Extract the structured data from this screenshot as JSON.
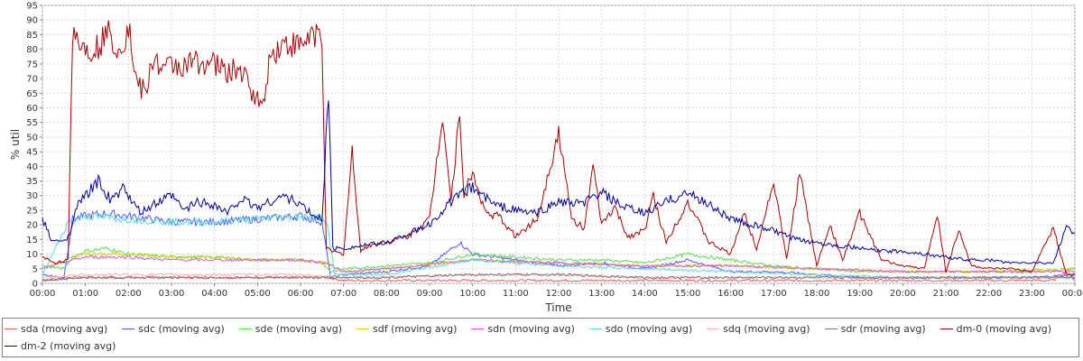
{
  "chart_data": {
    "type": "line",
    "title": "",
    "xlabel": "Time",
    "ylabel": "% util",
    "ylim": [
      0,
      95
    ],
    "xlim": [
      0,
      24
    ],
    "y_ticks": [
      0,
      5,
      10,
      15,
      20,
      25,
      30,
      35,
      40,
      45,
      50,
      55,
      60,
      65,
      70,
      75,
      80,
      85,
      90,
      95
    ],
    "x_tick_labels": [
      "00:00",
      "01:00",
      "02:00",
      "03:00",
      "04:00",
      "05:00",
      "06:00",
      "07:00",
      "08:00",
      "09:00",
      "10:00",
      "11:00",
      "12:00",
      "13:00",
      "14:00",
      "15:00",
      "16:00",
      "17:00",
      "18:00",
      "19:00",
      "20:00",
      "21:00",
      "22:00",
      "23:00",
      "00:00"
    ],
    "grid": true,
    "legend_position": "bottom",
    "series": [
      {
        "name": "sda (moving avg)",
        "color": "#ff5555",
        "x": [
          0,
          0.6,
          1,
          2,
          3,
          4,
          5,
          6,
          6.6,
          7,
          8,
          10,
          12,
          14,
          16,
          18,
          20,
          22,
          23.5,
          23.8,
          24
        ],
        "y": [
          1,
          2,
          2,
          2,
          2,
          2,
          2,
          2,
          2,
          1,
          1,
          1,
          1,
          1,
          1,
          1,
          1,
          1,
          1,
          4,
          1
        ]
      },
      {
        "name": "sdc (moving avg)",
        "color": "#5555ff",
        "x": [
          0,
          0.5,
          0.7,
          1,
          1.5,
          2,
          2.5,
          3,
          4,
          5,
          6,
          6.5,
          6.7,
          7,
          8,
          9,
          9.7,
          10,
          11,
          12,
          13,
          14,
          15,
          16,
          17,
          18,
          19,
          20,
          21,
          22,
          23,
          24
        ],
        "y": [
          3,
          2,
          22,
          23,
          24,
          23,
          22,
          21,
          21,
          22,
          23,
          21,
          2,
          3,
          4,
          6,
          14,
          10,
          8,
          6,
          7,
          5,
          8,
          4,
          4,
          3,
          2,
          2,
          2,
          2,
          2,
          3
        ]
      },
      {
        "name": "sde (moving avg)",
        "color": "#55dd55",
        "x": [
          0,
          0.5,
          0.7,
          1,
          1.5,
          2,
          3,
          4,
          5,
          6,
          6.5,
          6.7,
          7,
          8,
          9,
          10,
          11,
          12,
          13,
          14,
          15,
          16,
          17,
          18,
          19,
          20,
          21,
          22,
          23,
          24
        ],
        "y": [
          6,
          5,
          9,
          11,
          12,
          10,
          9,
          9,
          8,
          8,
          7,
          4,
          5,
          6,
          7,
          10,
          9,
          8,
          8,
          7,
          10,
          8,
          6,
          5,
          4,
          4,
          4,
          4,
          4,
          5
        ]
      },
      {
        "name": "sdf (moving avg)",
        "color": "#d4d400",
        "x": [
          0,
          0.7,
          1,
          2,
          3,
          4,
          5,
          6,
          6.6,
          7,
          8,
          10,
          12,
          14,
          16,
          18,
          20,
          22,
          24
        ],
        "y": [
          5,
          9,
          10,
          10,
          9,
          9,
          8,
          8,
          7,
          4,
          5,
          8,
          7,
          6,
          6,
          5,
          4,
          4,
          5
        ]
      },
      {
        "name": "sdn (moving avg)",
        "color": "#dd55dd",
        "x": [
          0,
          0.7,
          1,
          2,
          3,
          4,
          5,
          6,
          6.6,
          7,
          8,
          10,
          12,
          14,
          16,
          18,
          20,
          22,
          24
        ],
        "y": [
          5,
          8,
          9,
          9,
          8,
          8,
          8,
          8,
          7,
          4,
          5,
          8,
          7,
          6,
          6,
          5,
          4,
          4,
          4
        ]
      },
      {
        "name": "sdo (moving avg)",
        "color": "#55dddd",
        "x": [
          0,
          0.6,
          1,
          2,
          3,
          4,
          5,
          6,
          6.6,
          6.8,
          8,
          10,
          12,
          14,
          16,
          18,
          20,
          22,
          24
        ],
        "y": [
          3,
          21,
          23,
          22,
          21,
          21,
          22,
          23,
          22,
          3,
          3,
          8,
          6,
          5,
          4,
          3,
          2,
          2,
          2
        ]
      },
      {
        "name": "sdq (moving avg)",
        "color": "#ffaaaa",
        "x": [
          0,
          1,
          2,
          3,
          4,
          5,
          6,
          7,
          8,
          10,
          12,
          14,
          16,
          18,
          20,
          22,
          24
        ],
        "y": [
          2,
          3,
          3,
          3,
          3,
          3,
          3,
          2,
          2,
          3,
          3,
          2,
          2,
          2,
          2,
          2,
          2
        ]
      },
      {
        "name": "sdr (moving avg)",
        "color": "#777777",
        "x": [
          0,
          1,
          2,
          3,
          4,
          5,
          6,
          7,
          8,
          10,
          12,
          14,
          16,
          18,
          20,
          22,
          24
        ],
        "y": [
          1,
          2,
          2,
          2,
          2,
          2,
          2,
          2,
          2,
          3,
          3,
          2,
          2,
          2,
          2,
          2,
          2
        ]
      },
      {
        "name": "dm-0 (moving avg)",
        "color": "#aa0000",
        "x": [
          0,
          0.3,
          0.6,
          0.7,
          1,
          1.3,
          1.5,
          1.8,
          2,
          2.2,
          2.4,
          2.6,
          2.8,
          3,
          3.3,
          3.6,
          4,
          4.3,
          4.6,
          4.9,
          5.1,
          5.3,
          5.6,
          6,
          6.3,
          6.5,
          6.6,
          6.7,
          7,
          7.2,
          7.4,
          7.6,
          8,
          8.5,
          9,
          9.3,
          9.5,
          9.7,
          9.8,
          10,
          10.3,
          10.6,
          11,
          11.5,
          12,
          12.3,
          12.6,
          12.8,
          13,
          13.3,
          13.6,
          14,
          14.2,
          14.5,
          15,
          15.5,
          16,
          16.3,
          16.6,
          17,
          17.3,
          17.6,
          18,
          18.3,
          18.6,
          19,
          19.5,
          20,
          20.5,
          20.8,
          21,
          21.3,
          21.6,
          22,
          22.5,
          23,
          23.5,
          23.8,
          24
        ],
        "y": [
          9,
          7,
          8,
          87,
          80,
          81,
          86,
          80,
          88,
          68,
          65,
          78,
          72,
          75,
          74,
          76,
          75,
          72,
          73,
          65,
          60,
          78,
          82,
          81,
          86,
          84,
          12,
          11,
          10,
          45,
          11,
          13,
          14,
          16,
          22,
          58,
          28,
          60,
          30,
          38,
          24,
          23,
          16,
          22,
          52,
          22,
          19,
          40,
          20,
          26,
          16,
          18,
          30,
          14,
          28,
          14,
          10,
          24,
          12,
          35,
          8,
          38,
          6,
          20,
          8,
          24,
          8,
          6,
          5,
          24,
          4,
          18,
          6,
          5,
          5,
          4,
          19,
          3,
          3
        ]
      },
      {
        "name": "dm-2 (moving avg)",
        "color": "#000099",
        "x": [
          0,
          0.2,
          0.4,
          0.6,
          0.8,
          1,
          1.3,
          1.6,
          1.9,
          2.1,
          2.3,
          2.6,
          3,
          3.3,
          3.6,
          4,
          4.3,
          4.6,
          5,
          5.3,
          5.6,
          6,
          6.3,
          6.5,
          6.65,
          6.75,
          7,
          8,
          9,
          9.5,
          10,
          10.5,
          11,
          11.5,
          12,
          12.5,
          13,
          13.5,
          14,
          14.5,
          15,
          15.5,
          16,
          16.5,
          17,
          17.5,
          18,
          18.5,
          19,
          19.5,
          20,
          20.5,
          21,
          21.5,
          22,
          22.5,
          23,
          23.5,
          23.8,
          24
        ],
        "y": [
          22,
          15,
          14,
          16,
          26,
          30,
          35,
          28,
          33,
          27,
          24,
          27,
          30,
          25,
          28,
          27,
          24,
          29,
          26,
          28,
          30,
          27,
          23,
          22,
          66,
          12,
          12,
          14,
          20,
          28,
          33,
          27,
          25,
          24,
          28,
          27,
          31,
          26,
          24,
          28,
          31,
          27,
          22,
          20,
          18,
          15,
          14,
          13,
          12,
          11,
          11,
          10,
          9,
          8,
          8,
          7,
          7,
          7,
          19,
          17
        ]
      }
    ]
  }
}
